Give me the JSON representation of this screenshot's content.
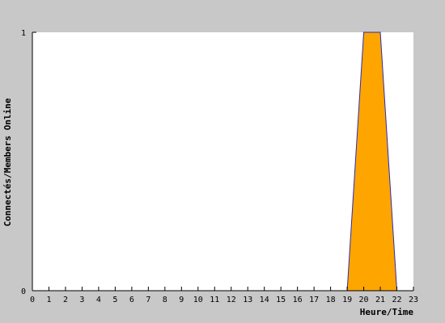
{
  "colors": {
    "frame_background": "#c8c8c8",
    "plot_background": "#ffffff",
    "area_fill": "#ffa500",
    "area_line": "#2b2bb0",
    "axis": "#000000"
  },
  "chart_data": {
    "type": "area",
    "title": "",
    "xlabel": "Heure/Time",
    "ylabel": "Connectés/Members Online",
    "xlim": [
      0,
      23
    ],
    "ylim": [
      0,
      1
    ],
    "x_ticks": [
      0,
      1,
      2,
      3,
      4,
      5,
      6,
      7,
      8,
      9,
      10,
      11,
      12,
      13,
      14,
      15,
      16,
      17,
      18,
      19,
      20,
      21,
      22,
      23
    ],
    "y_ticks": [
      0,
      1
    ],
    "grid": false,
    "legend": "none",
    "series": [
      {
        "x": [
          0,
          1,
          2,
          3,
          4,
          5,
          6,
          7,
          8,
          9,
          10,
          11,
          12,
          13,
          14,
          15,
          16,
          17,
          18,
          19,
          20,
          21,
          22,
          23
        ],
        "values": [
          0,
          0,
          0,
          0,
          0,
          0,
          0,
          0,
          0,
          0,
          0,
          0,
          0,
          0,
          0,
          0,
          0,
          0,
          0,
          0,
          1,
          1,
          0,
          0
        ]
      }
    ]
  }
}
